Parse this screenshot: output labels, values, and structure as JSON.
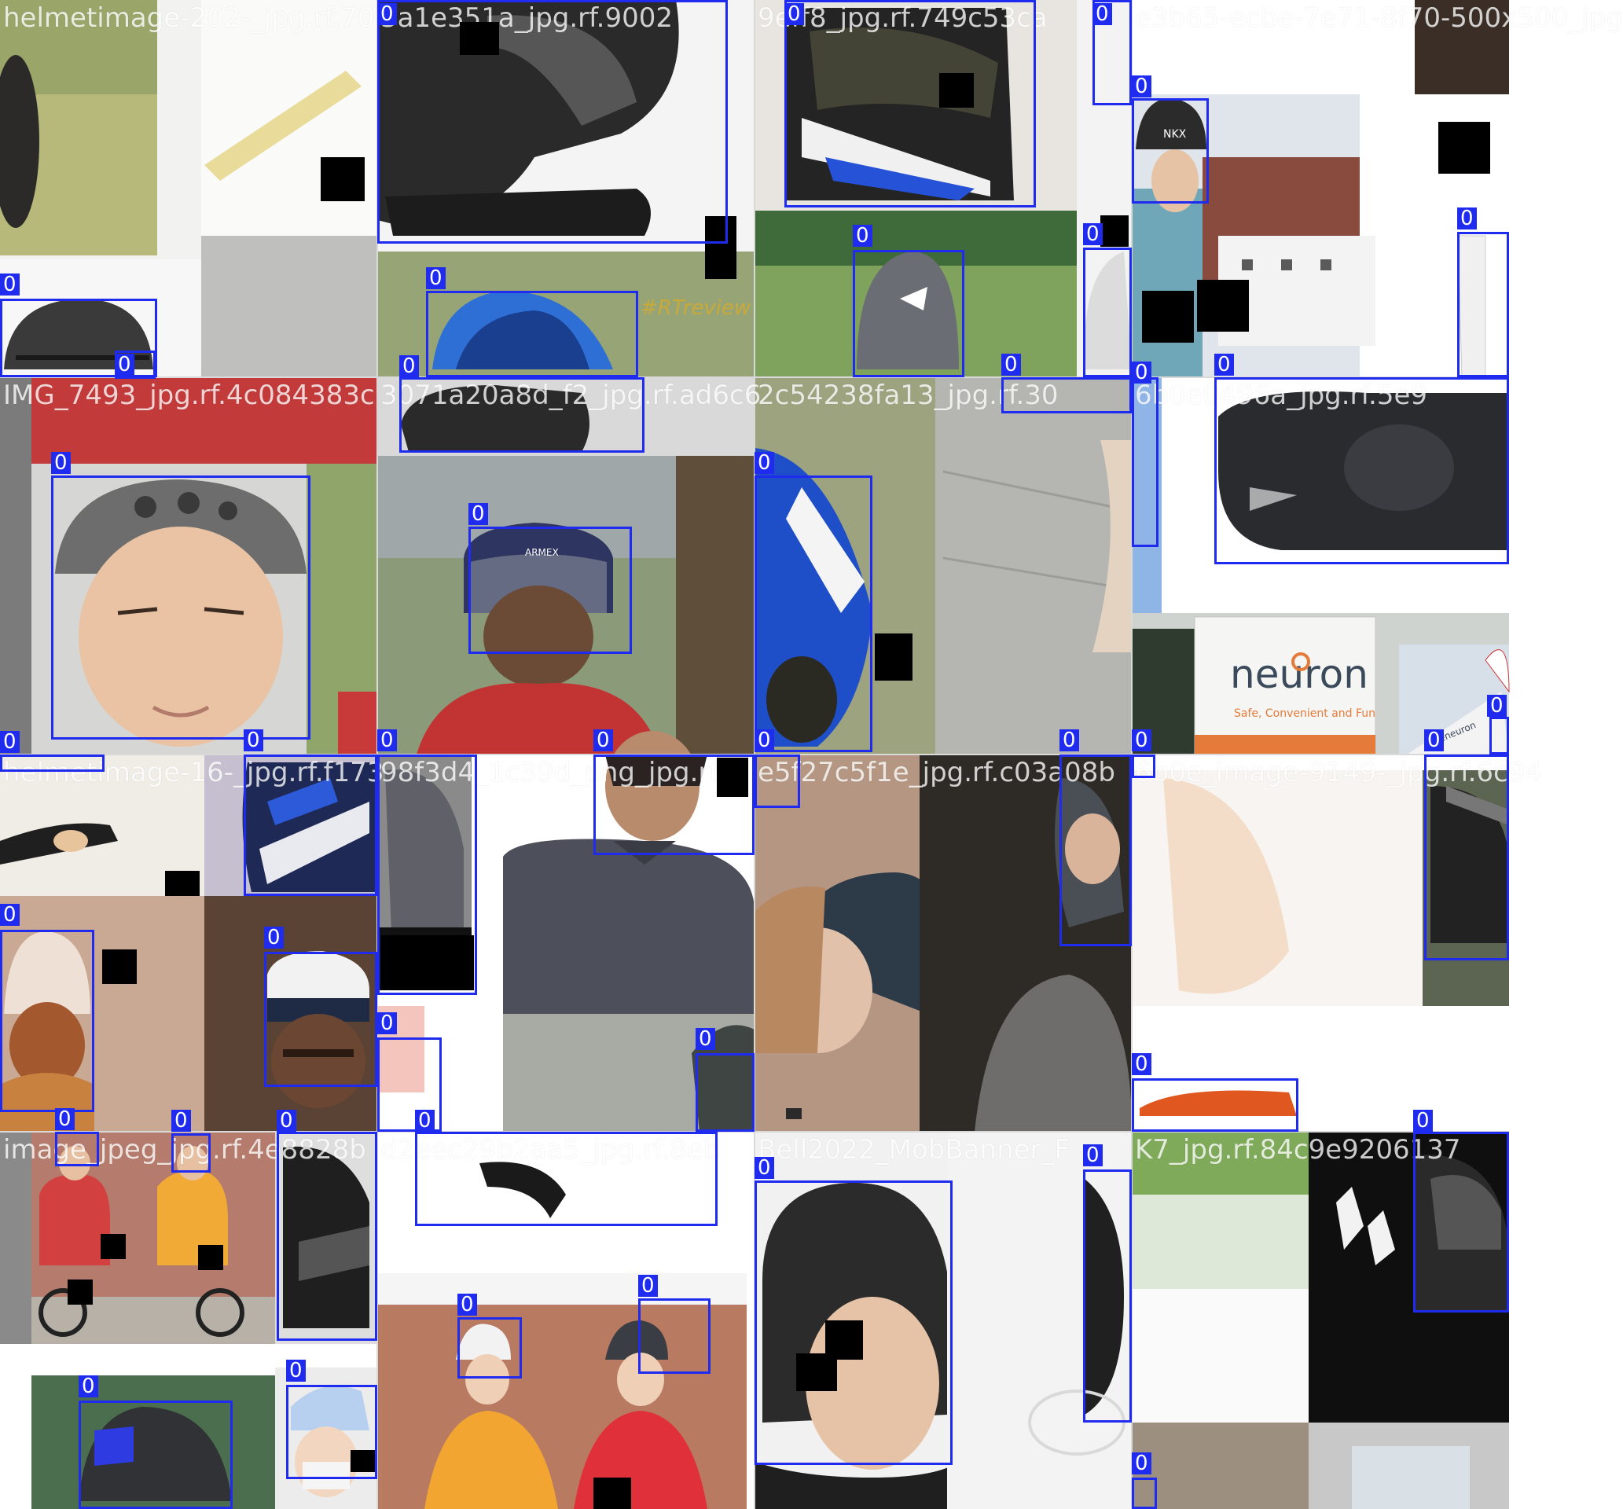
{
  "mosaic": {
    "filenames": [
      "helmetimage-202-_jpg.rf.70",
      "3a1e351a_jpg.rf.9002",
      "9eff8_jpg.rf.749c53ca",
      "e3b65-ecbe-7e71-8f70-500x500_jpg",
      "IMG_7493_jpg.rf.4c084383c",
      "3071a20a8d_f2_jpg.rf.ad6c6",
      "2c54238fa13_jpg.rf.30",
      "6b0e0496a_jpg.rf.5e9",
      "helmetimage-16-_jpg.rf.f173",
      "98f3d4_1c39d_png_jpg.rf.",
      "e5f27c5f1e_jpg.rf.c03a08b",
      "6b0e_image-9149-_jpg.rf.6c94",
      "image_jpeg_jpg.rf.4e8828b",
      "d2eec29b2aa5_jpg.rf.8eb",
      "Bell2022_MobBanner_F",
      "K7_jpg.rf.84c9e9206137"
    ],
    "class_label": "0",
    "banner": {
      "brand": "neuron",
      "tagline": "Safe, Convenient and Fun",
      "side_text": "rideneuron"
    },
    "helmet_texts": [
      "ARMEX",
      "#RTreview",
      "NKX"
    ]
  }
}
